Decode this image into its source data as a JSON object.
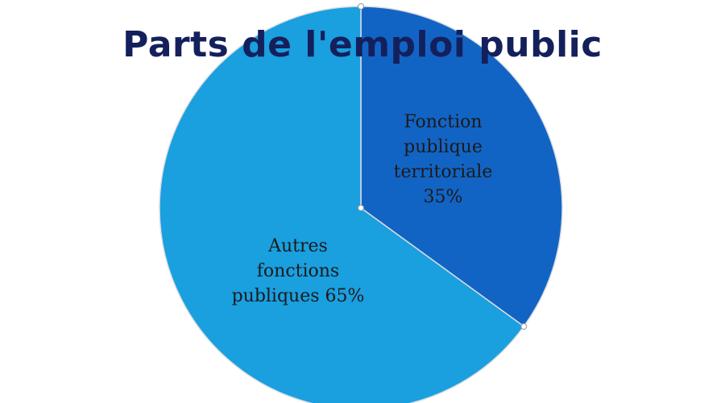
{
  "chart_data": {
    "type": "pie",
    "title": "Parts de l'emploi public",
    "slices": [
      {
        "label_lines": [
          "Fonction",
          "publique",
          "territoriale",
          "35%"
        ],
        "value": 35,
        "color": "#1264c4"
      },
      {
        "label_lines": [
          "Autres",
          "fonctions",
          "publiques 65%"
        ],
        "value": 65,
        "color": "#1a9fdf"
      }
    ],
    "start_angle_deg": 0,
    "direction": "clockwise"
  },
  "colors": {
    "title": "#14205c",
    "border": "#d9dde3",
    "label": "#1b1b1b"
  }
}
